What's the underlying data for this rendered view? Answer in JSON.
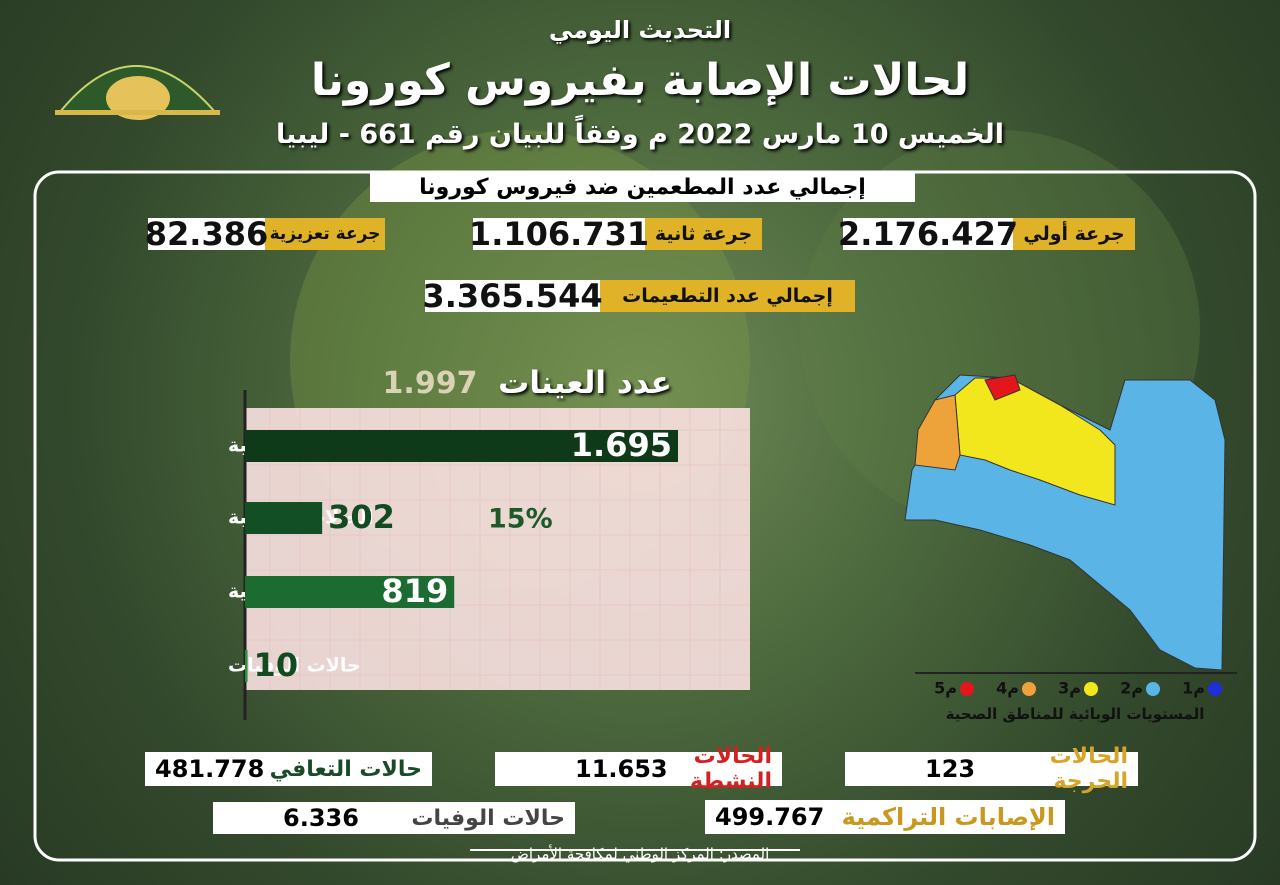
{
  "header": {
    "subtitle": "التحديث اليومي",
    "title": "لحالات الإصابة بفيروس كورونا",
    "date_line": "الخميس 10 مارس 2022 م وفقاً للبيان رقم 661 - ليبيا"
  },
  "vaccination": {
    "title": "إجمالي عدد المطعمين ضد فيروس كورونا",
    "doses": [
      {
        "label": "جرعة أولي",
        "value": "2.176.427"
      },
      {
        "label": "جرعة ثانية",
        "value": "1.106.731"
      },
      {
        "label": "جرعة تعزيزية",
        "value": "82.386"
      }
    ],
    "total": {
      "label": "إجمالي عدد التطعيمات",
      "value": "3.365.544"
    }
  },
  "samples": {
    "label": "عدد العينات",
    "value": "1.997"
  },
  "chart_data": {
    "type": "bar",
    "orientation": "horizontal",
    "categories": [
      "الحالات السالبة",
      "الحالات الموجبة",
      "الحالات المتعافية",
      "حالات الوفيات"
    ],
    "values": [
      1695,
      302,
      819,
      10
    ],
    "value_labels": [
      "1.695",
      "302",
      "819",
      "10"
    ],
    "colors": [
      "#0e3a19",
      "#134f25",
      "#1c6b30",
      "#2c8f3f"
    ],
    "annotation": "15%"
  },
  "map_legend": {
    "levels": [
      {
        "label": "م1",
        "color": "#1f2fd8"
      },
      {
        "label": "م2",
        "color": "#5ab4e6"
      },
      {
        "label": "م3",
        "color": "#f2e61c"
      },
      {
        "label": "م4",
        "color": "#eea23a"
      },
      {
        "label": "م5",
        "color": "#e3161b"
      }
    ],
    "caption": "المستويات الوبائية للمناطق الصحية"
  },
  "stats": [
    {
      "label": "حالات التعافي",
      "value": "481.778"
    },
    {
      "label": "الحالات النشطة",
      "value": "11.653"
    },
    {
      "label": "الحالات الحرجة",
      "value": "123"
    },
    {
      "label": "حالات الوفيات",
      "value": "6.336"
    },
    {
      "label": "الإصابات التراكمية",
      "value": "499.767"
    }
  ],
  "source": "المصدر: المركز الوطني لمكافحة الأمراض"
}
